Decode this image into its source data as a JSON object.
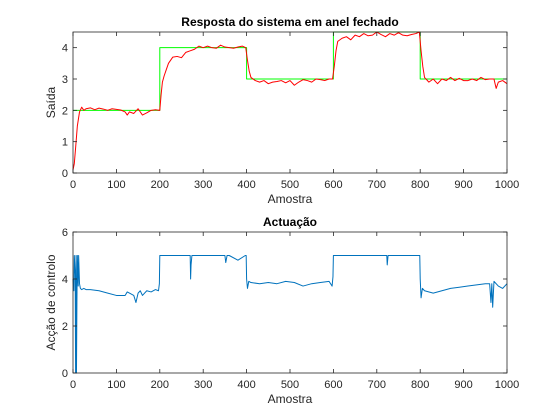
{
  "chart_data": [
    {
      "type": "line",
      "title": "Resposta do sistema em anel fechado",
      "xlabel": "Amostra",
      "ylabel": "Saída",
      "xlim": [
        0,
        1000
      ],
      "ylim": [
        0,
        4.5
      ],
      "xticks": [
        0,
        100,
        200,
        300,
        400,
        500,
        600,
        700,
        800,
        900,
        1000
      ],
      "yticks": [
        0,
        1,
        2,
        3,
        4
      ],
      "grid": false,
      "series": [
        {
          "color": "#00ff00",
          "step": true,
          "x": [
            0,
            200,
            400,
            600,
            800,
            1000
          ],
          "values": [
            2,
            4,
            3,
            4.5,
            3,
            3
          ]
        },
        {
          "color": "#ff0000",
          "x": [
            0,
            3,
            6,
            10,
            15,
            20,
            25,
            30,
            40,
            50,
            60,
            70,
            80,
            90,
            100,
            110,
            120,
            125,
            130,
            140,
            150,
            160,
            170,
            180,
            190,
            200,
            203,
            206,
            210,
            215,
            220,
            225,
            230,
            240,
            250,
            260,
            270,
            280,
            290,
            300,
            310,
            320,
            330,
            340,
            350,
            360,
            370,
            380,
            390,
            398,
            402,
            406,
            410,
            420,
            430,
            440,
            450,
            460,
            470,
            480,
            490,
            500,
            510,
            520,
            530,
            540,
            550,
            560,
            570,
            580,
            590,
            598,
            602,
            606,
            610,
            620,
            630,
            640,
            650,
            660,
            670,
            680,
            690,
            700,
            710,
            720,
            730,
            740,
            750,
            760,
            770,
            780,
            790,
            798,
            802,
            806,
            810,
            820,
            830,
            840,
            850,
            860,
            870,
            880,
            890,
            900,
            910,
            920,
            930,
            940,
            950,
            960,
            970,
            975,
            980,
            990,
            1000
          ],
          "values": [
            0.1,
            0.3,
            0.8,
            1.5,
            1.95,
            2.1,
            2.0,
            2.05,
            2.08,
            2.02,
            2.07,
            2.04,
            2.0,
            2.05,
            2.03,
            2.01,
            1.95,
            1.85,
            1.95,
            1.9,
            2.05,
            1.85,
            1.92,
            2.0,
            2.02,
            2.0,
            2.5,
            2.9,
            3.1,
            3.3,
            3.5,
            3.6,
            3.7,
            3.72,
            3.68,
            3.85,
            3.9,
            3.95,
            4.05,
            4.0,
            4.05,
            4.0,
            3.98,
            4.08,
            4.02,
            4.0,
            3.98,
            4.02,
            4.05,
            4.0,
            3.6,
            3.25,
            3.05,
            2.95,
            2.9,
            2.95,
            2.85,
            2.9,
            2.92,
            2.95,
            2.88,
            2.95,
            2.8,
            2.9,
            2.98,
            2.95,
            2.9,
            3.0,
            2.98,
            2.95,
            3.0,
            3.0,
            3.4,
            3.9,
            4.2,
            4.3,
            4.35,
            4.25,
            4.4,
            4.35,
            4.45,
            4.38,
            4.4,
            4.5,
            4.42,
            4.35,
            4.45,
            4.4,
            4.48,
            4.4,
            4.38,
            4.42,
            4.45,
            4.5,
            3.9,
            3.4,
            3.05,
            2.9,
            3.0,
            2.85,
            3.0,
            2.95,
            3.05,
            2.95,
            3.02,
            2.95,
            2.95,
            3.0,
            2.95,
            3.05,
            2.98,
            3.0,
            3.0,
            2.7,
            2.9,
            2.95,
            2.85
          ]
        }
      ]
    },
    {
      "type": "line",
      "title": "Actuação",
      "xlabel": "Amostra",
      "ylabel": "Acção de controlo",
      "xlim": [
        0,
        1000
      ],
      "ylim": [
        0,
        6
      ],
      "xticks": [
        0,
        100,
        200,
        300,
        400,
        500,
        600,
        700,
        800,
        900,
        1000
      ],
      "yticks": [
        0,
        2,
        4,
        6
      ],
      "grid": false,
      "series": [
        {
          "color": "#0072bd",
          "x": [
            0,
            2,
            3,
            5,
            6,
            7,
            8,
            9,
            10,
            11,
            12,
            13,
            15,
            17,
            20,
            25,
            30,
            40,
            60,
            80,
            100,
            120,
            125,
            130,
            140,
            145,
            150,
            155,
            160,
            170,
            180,
            190,
            197,
            199,
            200,
            205,
            210,
            230,
            250,
            270,
            271,
            272,
            274,
            276,
            290,
            310,
            330,
            350,
            352,
            355,
            360,
            380,
            397,
            399,
            400,
            402,
            405,
            410,
            430,
            450,
            470,
            490,
            510,
            530,
            550,
            570,
            590,
            597,
            599,
            600,
            610,
            630,
            650,
            670,
            690,
            710,
            723,
            724,
            726,
            728,
            740,
            760,
            780,
            790,
            797,
            799,
            800,
            802,
            805,
            810,
            830,
            850,
            870,
            890,
            910,
            930,
            950,
            960,
            963,
            965,
            967,
            970,
            980,
            990,
            1000
          ],
          "values": [
            4.0,
            3.5,
            5.0,
            4.2,
            0.0,
            5.0,
            0.0,
            3.0,
            5.0,
            4.3,
            3.7,
            5.0,
            3.8,
            3.6,
            3.55,
            3.6,
            3.55,
            3.55,
            3.5,
            3.4,
            3.3,
            3.3,
            3.45,
            3.4,
            3.3,
            3.0,
            3.4,
            3.5,
            3.3,
            3.5,
            3.45,
            3.55,
            3.5,
            3.8,
            5.0,
            5.0,
            5.0,
            5.0,
            5.0,
            5.0,
            4.0,
            4.6,
            5.0,
            5.0,
            5.0,
            5.0,
            5.0,
            5.0,
            4.7,
            5.0,
            5.0,
            4.8,
            5.0,
            5.0,
            4.0,
            3.6,
            3.9,
            3.85,
            3.8,
            3.85,
            3.8,
            3.9,
            3.85,
            3.7,
            3.8,
            3.85,
            3.9,
            3.7,
            4.1,
            5.0,
            5.0,
            5.0,
            5.0,
            5.0,
            5.0,
            5.0,
            5.0,
            4.6,
            5.0,
            5.0,
            5.0,
            5.0,
            5.0,
            5.0,
            5.0,
            5.0,
            4.0,
            3.2,
            3.6,
            3.5,
            3.4,
            3.5,
            3.6,
            3.65,
            3.7,
            3.75,
            3.8,
            3.8,
            3.0,
            3.8,
            2.8,
            3.9,
            3.7,
            3.6,
            3.8
          ]
        }
      ]
    }
  ]
}
